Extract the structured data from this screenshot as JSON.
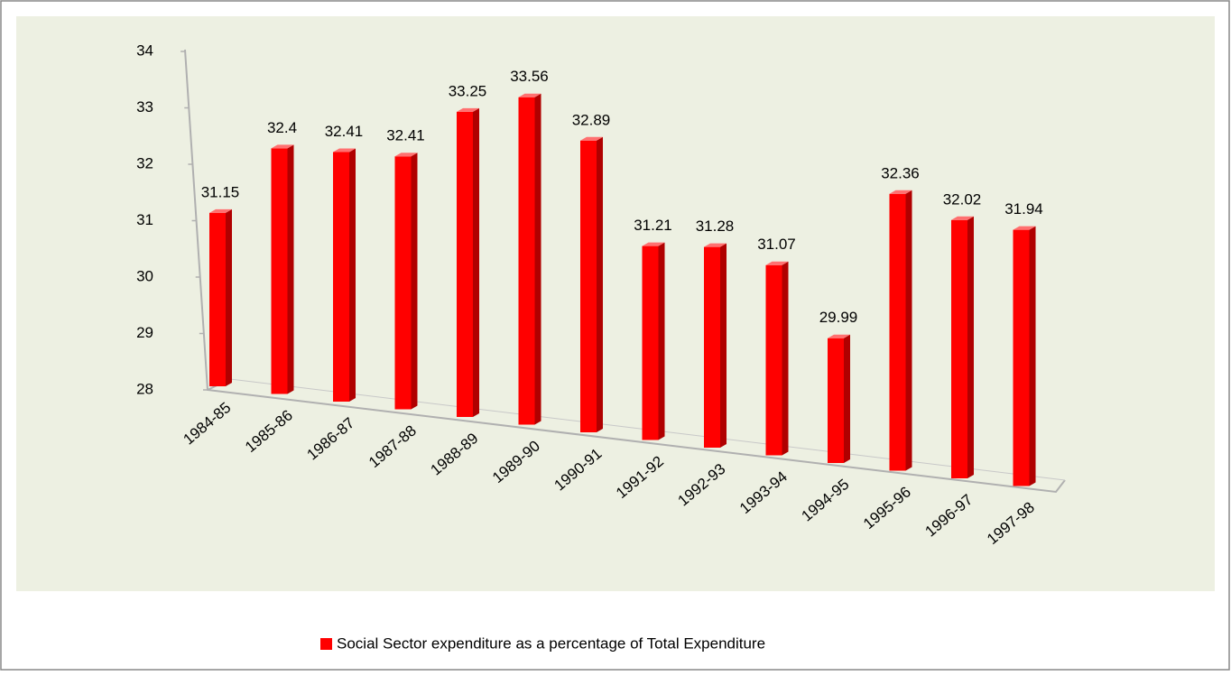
{
  "chart_data": {
    "type": "bar3d",
    "categories": [
      "1984-85",
      "1985-86",
      "1986-87",
      "1987-88",
      "1988-89",
      "1989-90",
      "1990-91",
      "1991-92",
      "1992-93",
      "1993-94",
      "1994-95",
      "1995-96",
      "1996-97",
      "1997-98"
    ],
    "series": [
      {
        "name": "Social Sector expenditure as a percentage of Total Expenditure",
        "color": "#ff0000",
        "values": [
          31.15,
          32.4,
          32.41,
          32.41,
          33.25,
          33.56,
          32.89,
          31.21,
          31.28,
          31.07,
          29.99,
          32.36,
          32.02,
          31.94
        ]
      }
    ],
    "ylim": [
      28,
      34
    ],
    "yticks": [
      28,
      29,
      30,
      31,
      32,
      33,
      34
    ],
    "legend": "bottom"
  }
}
